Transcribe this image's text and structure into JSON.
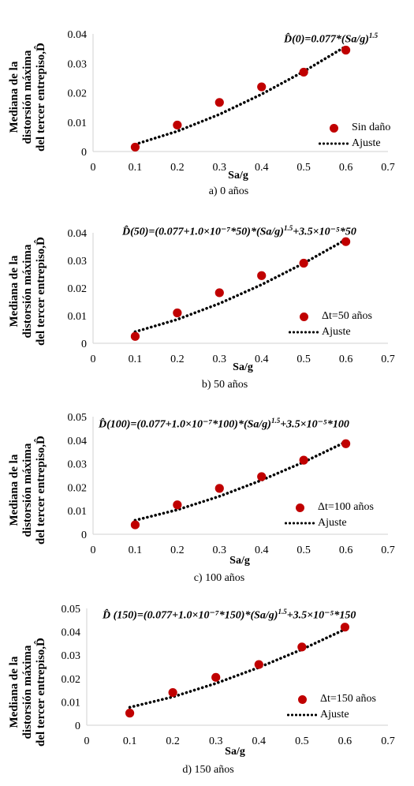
{
  "ylabel_lines": [
    "Mediana de la",
    "distorsión máxima",
    "del tercer entrepiso,D̂"
  ],
  "colors": {
    "points": "#c00000",
    "fit": "#000000",
    "axis": "#d9d9d9"
  },
  "chart_data": [
    {
      "type": "scatter",
      "x": [
        0.1,
        0.2,
        0.3,
        0.4,
        0.5,
        0.6
      ],
      "y": [
        0.0015,
        0.009,
        0.0167,
        0.022,
        0.027,
        0.0345
      ],
      "fit": [
        [
          0.1,
          0.00243
        ],
        [
          0.2,
          0.00689
        ],
        [
          0.3,
          0.01265
        ],
        [
          0.4,
          0.01948
        ],
        [
          0.5,
          0.02722
        ],
        [
          0.6,
          0.03579
        ]
      ],
      "xlabel": "Sa/g",
      "xlim": [
        0,
        0.7
      ],
      "ylim": [
        0,
        0.04
      ],
      "yticks": [
        "0",
        "0.01",
        "0.02",
        "0.03",
        "0.04"
      ],
      "xticks": [
        "0",
        "0.1",
        "0.2",
        "0.3",
        "0.4",
        "0.5",
        "0.6",
        "0.7"
      ],
      "equation": {
        "text": "D̂(0)=0.077*(Sa/g)",
        "sup": "1.5",
        "tail": ""
      },
      "legend": {
        "points_label": "Sin daño",
        "fit_label": "Ajuste"
      },
      "caption": "a) 0 años"
    },
    {
      "type": "scatter",
      "x": [
        0.1,
        0.2,
        0.3,
        0.4,
        0.5,
        0.6
      ],
      "y": [
        0.0025,
        0.011,
        0.0183,
        0.0245,
        0.029,
        0.0368
      ],
      "fit": [
        [
          0.1,
          0.00418
        ],
        [
          0.2,
          0.00864
        ],
        [
          0.3,
          0.0144
        ],
        [
          0.4,
          0.02123
        ],
        [
          0.5,
          0.02897
        ],
        [
          0.6,
          0.03754
        ]
      ],
      "xlabel": "Sa/g",
      "xlim": [
        0,
        0.7
      ],
      "ylim": [
        0,
        0.04
      ],
      "yticks": [
        "0",
        "0.01",
        "0.02",
        "0.03",
        "0.04"
      ],
      "xticks": [
        "0",
        "0.1",
        "0.2",
        "0.3",
        "0.4",
        "0.5",
        "0.6",
        "0.7"
      ],
      "equation": {
        "text": "D̂(50)=(0.077+1.0×10⁻⁷*50)*(Sa/g)",
        "sup": "1.5",
        "tail": "+3.5×10⁻⁵*50"
      },
      "legend": {
        "points_label": "Δt=50 años",
        "fit_label": "Ajuste"
      },
      "caption": "b) 50 años"
    },
    {
      "type": "scatter",
      "x": [
        0.1,
        0.2,
        0.3,
        0.4,
        0.5,
        0.6
      ],
      "y": [
        0.004,
        0.0125,
        0.0195,
        0.0245,
        0.0315,
        0.0385
      ],
      "fit": [
        [
          0.1,
          0.00593
        ],
        [
          0.2,
          0.01039
        ],
        [
          0.3,
          0.01615
        ],
        [
          0.4,
          0.02298
        ],
        [
          0.5,
          0.03072
        ],
        [
          0.6,
          0.03929
        ]
      ],
      "xlabel": "Sa/g",
      "xlim": [
        0,
        0.7
      ],
      "ylim": [
        0,
        0.05
      ],
      "yticks": [
        "0",
        "0.01",
        "0.02",
        "0.03",
        "0.04",
        "0.05"
      ],
      "xticks": [
        "0",
        "0.1",
        "0.2",
        "0.3",
        "0.4",
        "0.5",
        "0.6",
        "0.7"
      ],
      "equation": {
        "text": "D̂(100)=(0.077+1.0×10⁻⁷*100)*(Sa/g)",
        "sup": "1.5",
        "tail": "+3.5×10⁻⁵*100"
      },
      "legend": {
        "points_label": "Δt=100 años",
        "fit_label": "Ajuste"
      },
      "caption": "c) 100 años"
    },
    {
      "type": "scatter",
      "x": [
        0.1,
        0.2,
        0.3,
        0.4,
        0.5,
        0.6
      ],
      "y": [
        0.0052,
        0.014,
        0.0205,
        0.026,
        0.0335,
        0.042
      ],
      "fit": [
        [
          0.1,
          0.00768
        ],
        [
          0.2,
          0.01214
        ],
        [
          0.3,
          0.0179
        ],
        [
          0.4,
          0.02473
        ],
        [
          0.5,
          0.03247
        ],
        [
          0.6,
          0.04104
        ]
      ],
      "xlabel": "Sa/g",
      "xlim": [
        0,
        0.7
      ],
      "ylim": [
        0,
        0.05
      ],
      "yticks": [
        "0",
        "0.01",
        "0.02",
        "0.03",
        "0.04",
        "0.05"
      ],
      "xticks": [
        "0",
        "0.1",
        "0.2",
        "0.3",
        "0.4",
        "0.5",
        "0.6",
        "0.7"
      ],
      "equation": {
        "text": "D̂ (150)=(0.077+1.0×10⁻⁷*150)*(Sa/g)",
        "sup": "1.5",
        "tail": "+3.5×10⁻⁵*150"
      },
      "legend": {
        "points_label": "Δt=150 años",
        "fit_label": "Ajuste"
      },
      "caption": "d) 150 años"
    }
  ]
}
